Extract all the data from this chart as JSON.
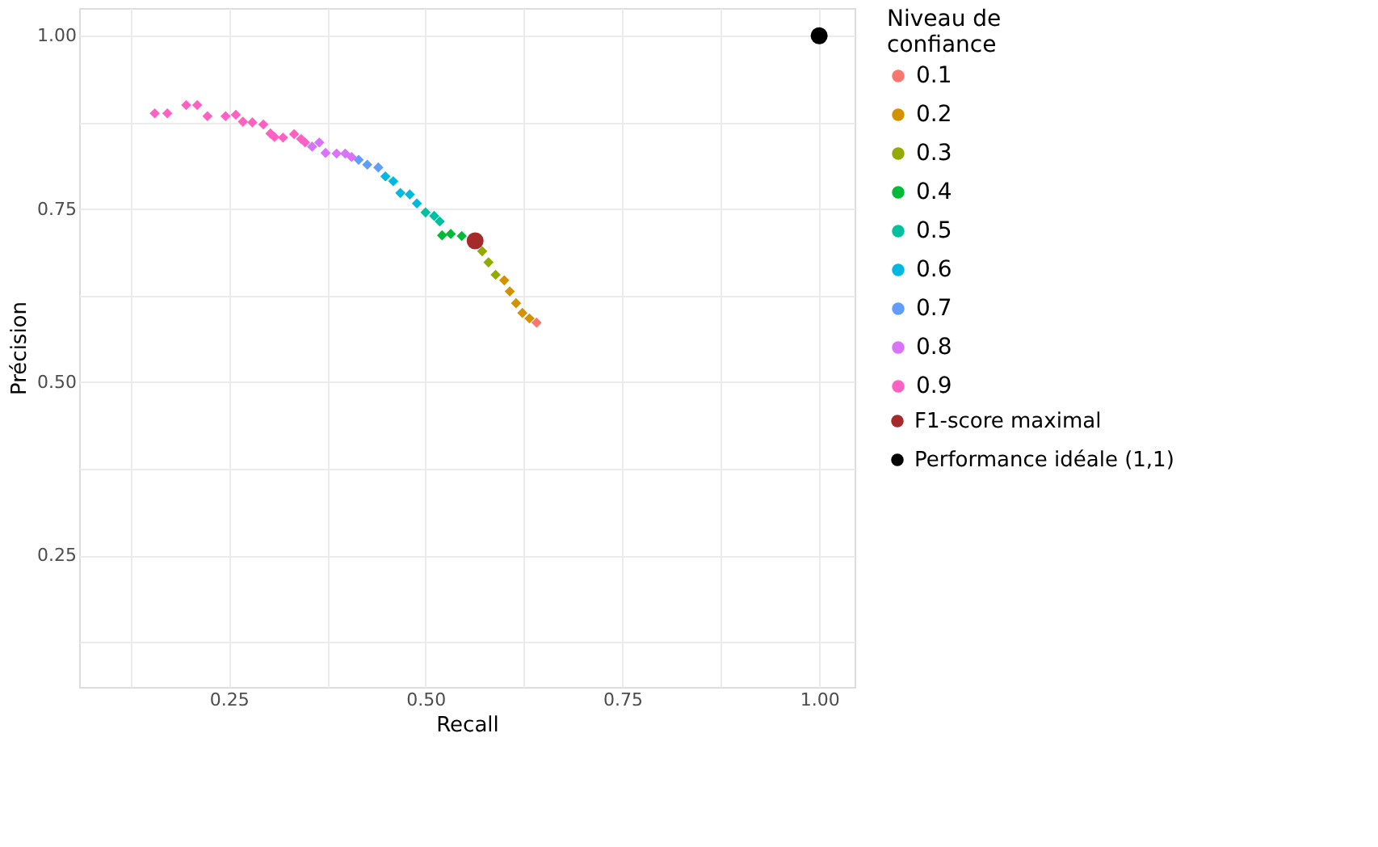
{
  "chart_data": {
    "type": "scatter",
    "xlabel": "Recall",
    "ylabel": "Précision",
    "legend_title": "Niveau de confiance",
    "legend": "right",
    "grid": true,
    "xlim": [
      0.06,
      1.045
    ],
    "ylim": [
      0.06,
      1.04
    ],
    "xticks": [
      {
        "value": 0.125,
        "label": null
      },
      {
        "value": 0.25,
        "label": "0.25"
      },
      {
        "value": 0.375,
        "label": null
      },
      {
        "value": 0.5,
        "label": "0.50"
      },
      {
        "value": 0.625,
        "label": null
      },
      {
        "value": 0.75,
        "label": "0.75"
      },
      {
        "value": 0.875,
        "label": null
      },
      {
        "value": 1.0,
        "label": "1.00"
      }
    ],
    "yticks": [
      {
        "value": 0.125,
        "label": null
      },
      {
        "value": 0.25,
        "label": "0.25"
      },
      {
        "value": 0.375,
        "label": null
      },
      {
        "value": 0.5,
        "label": "0.50"
      },
      {
        "value": 0.625,
        "label": null
      },
      {
        "value": 0.75,
        "label": "0.75"
      },
      {
        "value": 0.875,
        "label": null
      },
      {
        "value": 1.0,
        "label": "1.00"
      }
    ],
    "series": [
      {
        "name": "0.1",
        "color": "#f8766d",
        "marker": "diamond",
        "x": [
          0.641
        ],
        "values": [
          0.586
        ]
      },
      {
        "name": "0.2",
        "color": "#d39200",
        "marker": "diamond",
        "x": [
          0.6,
          0.607,
          0.615,
          0.623,
          0.632
        ],
        "values": [
          0.647,
          0.631,
          0.614,
          0.6,
          0.592
        ]
      },
      {
        "name": "0.3",
        "color": "#93aa00",
        "marker": "diamond",
        "x": [
          0.572,
          0.58,
          0.589
        ],
        "values": [
          0.689,
          0.673,
          0.655
        ]
      },
      {
        "name": "0.4",
        "color": "#00ba38",
        "marker": "diamond",
        "x": [
          0.521,
          0.532,
          0.546
        ],
        "values": [
          0.712,
          0.714,
          0.711
        ]
      },
      {
        "name": "0.5",
        "color": "#00c19f",
        "marker": "diamond",
        "x": [
          0.5,
          0.511,
          0.518
        ],
        "values": [
          0.745,
          0.74,
          0.732
        ]
      },
      {
        "name": "0.6",
        "color": "#00b9e3",
        "marker": "diamond",
        "x": [
          0.449,
          0.459,
          0.468,
          0.48,
          0.489
        ],
        "values": [
          0.797,
          0.79,
          0.773,
          0.771,
          0.758
        ]
      },
      {
        "name": "0.7",
        "color": "#619cff",
        "marker": "diamond",
        "x": [
          0.415,
          0.426,
          0.44
        ],
        "values": [
          0.821,
          0.814,
          0.81
        ]
      },
      {
        "name": "0.8",
        "color": "#db72fb",
        "marker": "diamond",
        "x": [
          0.356,
          0.365,
          0.373,
          0.387,
          0.398,
          0.406
        ],
        "values": [
          0.84,
          0.846,
          0.831,
          0.83,
          0.83,
          0.825
        ]
      },
      {
        "name": "0.9",
        "color": "#ff61c3",
        "marker": "diamond",
        "x": [
          0.156,
          0.172,
          0.196,
          0.21,
          0.223,
          0.246,
          0.259,
          0.268,
          0.28,
          0.294,
          0.303,
          0.308,
          0.319,
          0.333,
          0.342,
          0.347
        ],
        "values": [
          0.888,
          0.888,
          0.9,
          0.9,
          0.884,
          0.884,
          0.886,
          0.876,
          0.875,
          0.872,
          0.859,
          0.854,
          0.853,
          0.858,
          0.851,
          0.846
        ]
      },
      {
        "name": "F1-score maximal",
        "color": "#a52a2a",
        "marker": "circle",
        "x": [
          0.563
        ],
        "values": [
          0.704
        ]
      },
      {
        "name": "Performance idéale (1,1)",
        "color": "#000000",
        "marker": "circle",
        "x": [
          1.0
        ],
        "values": [
          1.0
        ]
      }
    ]
  }
}
